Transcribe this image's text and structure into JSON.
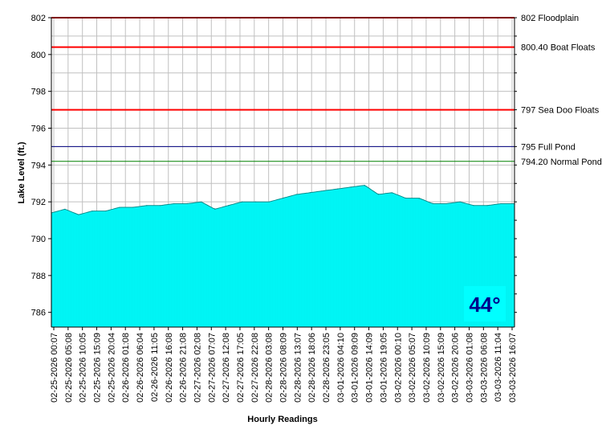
{
  "chart_data": {
    "type": "area",
    "title": "",
    "xlabel": "Hourly Readings",
    "ylabel": "Lake Level (ft.)",
    "ylim": [
      785.2,
      802
    ],
    "yticks": [
      "786",
      "788",
      "790",
      "792",
      "794",
      "796",
      "798",
      "800",
      "802"
    ],
    "xticks": [
      "02-25-2026 00:07",
      "02-25-2026 05:08",
      "02-25-2026 10:05",
      "02-25-2026 15:09",
      "02-25-2026 20:04",
      "02-26-2026 01:08",
      "02-26-2026 06:04",
      "02-26-2026 11:05",
      "02-26-2026 16:08",
      "02-26-2026 21:08",
      "02-27-2026 02:08",
      "02-27-2026 07:07",
      "02-27-2026 12:08",
      "02-27-2026 17:05",
      "02-27-2026 22:08",
      "02-28-2026 03:08",
      "02-28-2026 08:09",
      "02-28-2026 13:07",
      "02-28-2026 18:06",
      "02-28-2026 23:05",
      "03-01-2026 04:10",
      "03-01-2026 09:09",
      "03-01-2026 14:09",
      "03-01-2026 19:05",
      "03-02-2026 00:10",
      "03-02-2026 05:07",
      "03-02-2026 10:09",
      "03-02-2026 15:09",
      "03-02-2026 20:06",
      "03-03-2026 01:08",
      "03-03-2026 06:08",
      "03-03-2026 11:04",
      "03-03-2026 16:07"
    ],
    "grid": true,
    "fill_color": "#00ffff",
    "series": [
      {
        "values": [
          791.4,
          791.6,
          791.3,
          791.5,
          791.5,
          791.7,
          791.7,
          791.8,
          791.8,
          791.9,
          791.9,
          792.0,
          791.6,
          791.8,
          792.0,
          792.0,
          792.0,
          792.2,
          792.4,
          792.5,
          792.6,
          792.7,
          792.8,
          792.9,
          792.4,
          792.5,
          792.2,
          792.2,
          791.9,
          791.9,
          792.0,
          791.8,
          791.8,
          791.9,
          791.9
        ]
      }
    ],
    "reference_lines": [
      {
        "value": 802,
        "label": "802 Floodplain",
        "color": "#ff0000"
      },
      {
        "value": 800.4,
        "label": "800.40 Boat Floats",
        "color": "#ff0000"
      },
      {
        "value": 797,
        "label": "797 Sea Doo Floats",
        "color": "#ff0000"
      },
      {
        "value": 795,
        "label": "795 Full Pond",
        "color": "#000080"
      },
      {
        "value": 794.2,
        "label": "794.20 Normal Pond",
        "color": "#008000"
      }
    ],
    "temperature": "44°",
    "temperature_bg": "#00ffff",
    "temperature_color": "#00008b"
  }
}
